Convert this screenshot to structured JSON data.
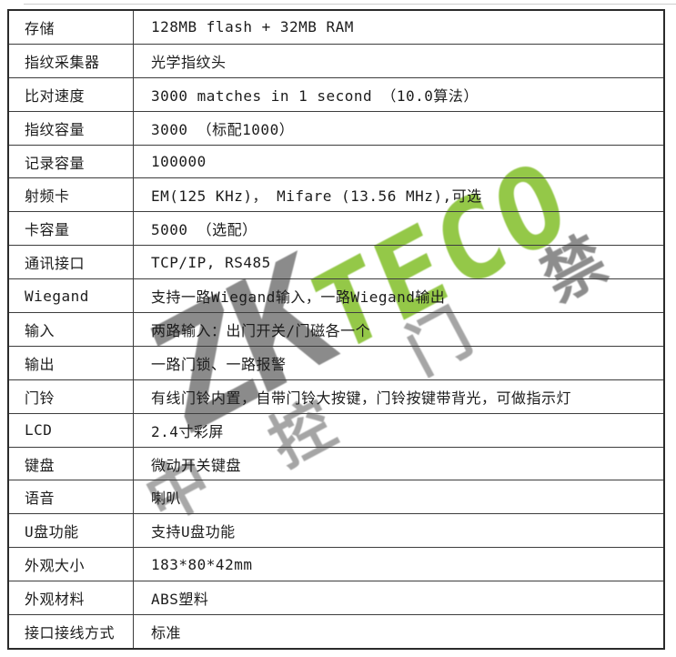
{
  "table": {
    "rows": [
      {
        "label": "存储",
        "value": "128MB flash + 32MB RAM"
      },
      {
        "label": "指纹采集器",
        "value": "光学指纹头"
      },
      {
        "label": "比对速度",
        "value": "3000  matches in 1 second （10.0算法）"
      },
      {
        "label": "指纹容量",
        "value": "3000 （标配1000）"
      },
      {
        "label": "记录容量",
        "value": "100000"
      },
      {
        "label": "射频卡",
        "value": "EM(125 KHz)， Mifare (13.56 MHz),可选"
      },
      {
        "label": "卡容量",
        "value": "5000 （选配）"
      },
      {
        "label": "通讯接口",
        "value": "TCP/IP, RS485"
      },
      {
        "label": "Wiegand",
        "value": "支持一路Wiegand输入，一路Wiegand输出"
      },
      {
        "label": "输入",
        "value": "两路输入：出门开关/门磁各一个"
      },
      {
        "label": "输出",
        "value": "一路门锁、一路报警"
      },
      {
        "label": "门铃",
        "value": "有线门铃内置，自带门铃大按键，门铃按键带背光，可做指示灯"
      },
      {
        "label": "LCD",
        "value": "2.4寸彩屏"
      },
      {
        "label": "键盘",
        "value": "微动开关键盘"
      },
      {
        "label": "语音",
        "value": "喇叭"
      },
      {
        "label": "U盘功能",
        "value": "支持U盘功能"
      },
      {
        "label": "外观大小",
        "value": "183*80*42mm"
      },
      {
        "label": "外观材料",
        "value": "ABS塑料"
      },
      {
        "label": "接口接线方式",
        "value": "标准"
      }
    ]
  },
  "watermark": {
    "logo_zk": "ZK",
    "logo_teco": "TECO",
    "caption_chars": [
      "中",
      "控",
      "门",
      "禁"
    ],
    "colors": {
      "logo_gray": "#8b8b8b",
      "logo_green": "#94c848",
      "caption_gray": "#9e9e9e"
    }
  }
}
